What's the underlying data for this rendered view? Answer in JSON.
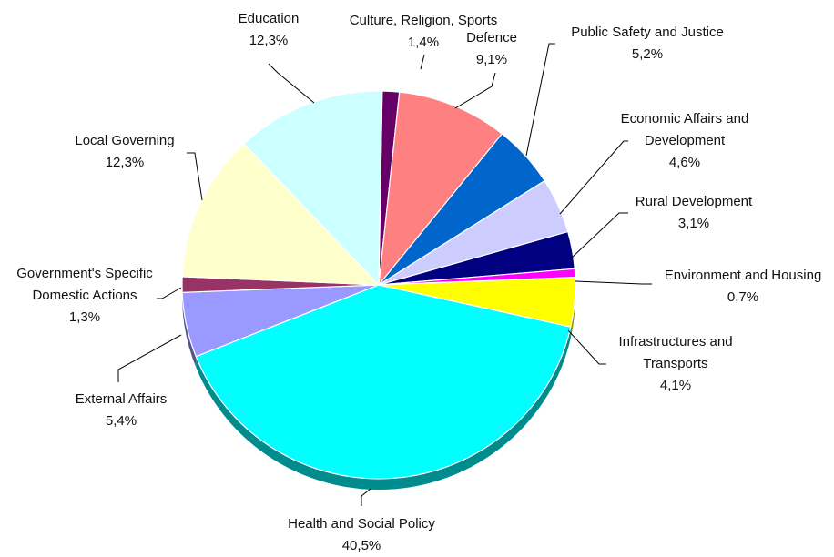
{
  "chart_data": {
    "type": "pie",
    "title": "",
    "slices": [
      {
        "label": "Culture, Religion, Sports",
        "value": 1.4,
        "value_label": "1,4%",
        "color": "#660066"
      },
      {
        "label": "Defence",
        "value": 9.1,
        "value_label": "9,1%",
        "color": "#ff8080"
      },
      {
        "label": "Public Safety and Justice",
        "value": 5.2,
        "value_label": "5,2%",
        "color": "#0066cc"
      },
      {
        "label": "Economic Affairs and Development",
        "value": 4.6,
        "value_label": "4,6%",
        "color": "#ccccff"
      },
      {
        "label": "Rural Development",
        "value": 3.1,
        "value_label": "3,1%",
        "color": "#000080"
      },
      {
        "label": "Environment and Housing",
        "value": 0.7,
        "value_label": "0,7%",
        "color": "#ff00ff"
      },
      {
        "label": "Infrastructures and Transports",
        "value": 4.1,
        "value_label": "4,1%",
        "color": "#ffff00"
      },
      {
        "label": "Health and Social Policy",
        "value": 40.5,
        "value_label": "40,5%",
        "color": "#00ffff"
      },
      {
        "label": "External Affairs",
        "value": 5.4,
        "value_label": "5,4%",
        "color": "#9999ff"
      },
      {
        "label": "Government's Specific Domestic Actions",
        "value": 1.3,
        "value_label": "1,3%",
        "color": "#993366"
      },
      {
        "label": "Local Governing",
        "value": 12.3,
        "value_label": "12,3%",
        "color": "#ffffcc"
      },
      {
        "label": "Education",
        "value": 12.3,
        "value_label": "12,3%",
        "color": "#ccffff"
      }
    ]
  }
}
